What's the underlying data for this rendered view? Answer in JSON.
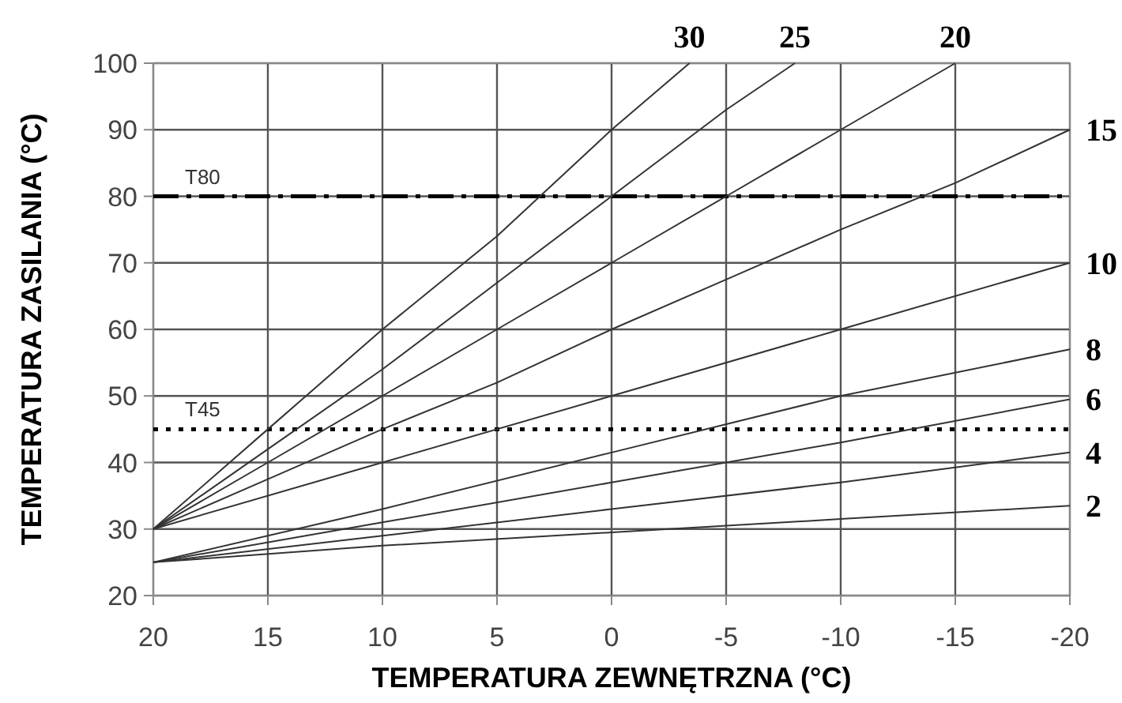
{
  "chart_data": {
    "type": "line",
    "xlabel": "TEMPERATURA ZEWNĘTRZNA (°C)",
    "ylabel": "TEMPERATURA ZASILANIA (°C)",
    "xlim": [
      20,
      -20
    ],
    "xticks": [
      20,
      15,
      10,
      5,
      0,
      -5,
      -10,
      -15,
      -20
    ],
    "ylim": [
      20,
      100
    ],
    "yticks": [
      20,
      30,
      40,
      50,
      60,
      70,
      80,
      90,
      100
    ],
    "grid": true,
    "marker": "none",
    "line_style": "solid",
    "series": [
      {
        "name": "30",
        "color": "#333333",
        "x": [
          20,
          15,
          10,
          5,
          0,
          -3.4
        ],
        "values": [
          30,
          45,
          60,
          74,
          90,
          100
        ]
      },
      {
        "name": "25",
        "color": "#333333",
        "x": [
          20,
          15,
          10,
          5,
          0,
          -5,
          -8
        ],
        "values": [
          30,
          42,
          54,
          67,
          80,
          93,
          100
        ]
      },
      {
        "name": "20",
        "color": "#333333",
        "x": [
          20,
          15,
          10,
          5,
          0,
          -5,
          -10,
          -15
        ],
        "values": [
          30,
          40,
          50,
          60,
          70,
          80,
          90,
          100
        ]
      },
      {
        "name": "15",
        "color": "#333333",
        "x": [
          20,
          15,
          10,
          5,
          0,
          -5,
          -10,
          -15,
          -20
        ],
        "values": [
          30,
          37.5,
          45,
          52,
          60,
          67.5,
          75,
          82,
          90
        ]
      },
      {
        "name": "10",
        "color": "#333333",
        "x": [
          20,
          10,
          0,
          -10,
          -20
        ],
        "values": [
          30,
          40,
          50,
          60,
          70
        ]
      },
      {
        "name": "8",
        "color": "#333333",
        "x": [
          20,
          10,
          0,
          -10,
          -20
        ],
        "values": [
          25,
          33,
          41.5,
          50,
          57
        ]
      },
      {
        "name": "6",
        "color": "#333333",
        "x": [
          20,
          10,
          0,
          -10,
          -20
        ],
        "values": [
          25,
          31,
          37,
          43,
          49.5
        ]
      },
      {
        "name": "4",
        "color": "#333333",
        "x": [
          20,
          10,
          0,
          -10,
          -20
        ],
        "values": [
          25,
          29,
          33,
          37,
          41.5
        ]
      },
      {
        "name": "2",
        "color": "#333333",
        "x": [
          20,
          10,
          0,
          -10,
          -20
        ],
        "values": [
          25,
          27.5,
          29.5,
          31.5,
          33.5
        ]
      }
    ],
    "ref_lines": [
      {
        "axis": "y",
        "value": 80,
        "label": "T80",
        "color": "#000000",
        "line_style": "dashdot"
      },
      {
        "axis": "y",
        "value": 45,
        "label": "T45",
        "color": "#000000",
        "line_style": "dotted"
      }
    ]
  }
}
